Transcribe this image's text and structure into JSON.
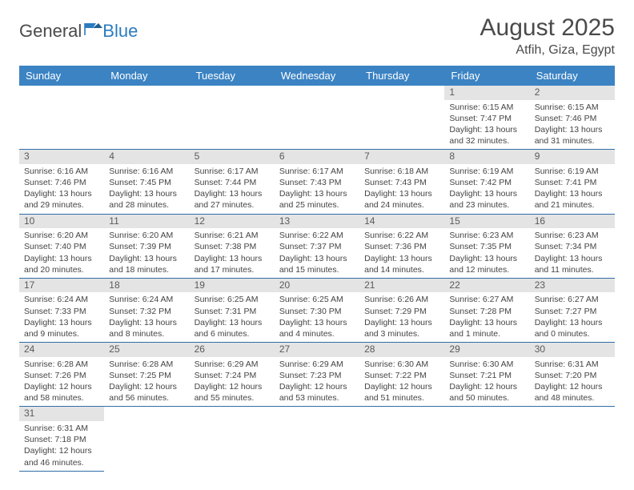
{
  "brand": {
    "name_a": "General",
    "name_b": "Blue"
  },
  "title": {
    "month": "August 2025",
    "location": "Atfih, Giza, Egypt"
  },
  "colors": {
    "header_bg": "#3b83c3",
    "header_text": "#ffffff",
    "daynum_bg": "#e4e4e4",
    "cell_border": "#2f6ea8",
    "text": "#444444",
    "brand_gray": "#4a4a4a",
    "brand_blue": "#2b7bbf"
  },
  "weekdays": [
    "Sunday",
    "Monday",
    "Tuesday",
    "Wednesday",
    "Thursday",
    "Friday",
    "Saturday"
  ],
  "grid": {
    "first_weekday_index": 5,
    "days_in_month": 31,
    "rows": 6,
    "cols": 7
  },
  "days": [
    {
      "n": 1,
      "sunrise": "6:15 AM",
      "sunset": "7:47 PM",
      "daylight": "13 hours and 32 minutes."
    },
    {
      "n": 2,
      "sunrise": "6:15 AM",
      "sunset": "7:46 PM",
      "daylight": "13 hours and 31 minutes."
    },
    {
      "n": 3,
      "sunrise": "6:16 AM",
      "sunset": "7:46 PM",
      "daylight": "13 hours and 29 minutes."
    },
    {
      "n": 4,
      "sunrise": "6:16 AM",
      "sunset": "7:45 PM",
      "daylight": "13 hours and 28 minutes."
    },
    {
      "n": 5,
      "sunrise": "6:17 AM",
      "sunset": "7:44 PM",
      "daylight": "13 hours and 27 minutes."
    },
    {
      "n": 6,
      "sunrise": "6:17 AM",
      "sunset": "7:43 PM",
      "daylight": "13 hours and 25 minutes."
    },
    {
      "n": 7,
      "sunrise": "6:18 AM",
      "sunset": "7:43 PM",
      "daylight": "13 hours and 24 minutes."
    },
    {
      "n": 8,
      "sunrise": "6:19 AM",
      "sunset": "7:42 PM",
      "daylight": "13 hours and 23 minutes."
    },
    {
      "n": 9,
      "sunrise": "6:19 AM",
      "sunset": "7:41 PM",
      "daylight": "13 hours and 21 minutes."
    },
    {
      "n": 10,
      "sunrise": "6:20 AM",
      "sunset": "7:40 PM",
      "daylight": "13 hours and 20 minutes."
    },
    {
      "n": 11,
      "sunrise": "6:20 AM",
      "sunset": "7:39 PM",
      "daylight": "13 hours and 18 minutes."
    },
    {
      "n": 12,
      "sunrise": "6:21 AM",
      "sunset": "7:38 PM",
      "daylight": "13 hours and 17 minutes."
    },
    {
      "n": 13,
      "sunrise": "6:22 AM",
      "sunset": "7:37 PM",
      "daylight": "13 hours and 15 minutes."
    },
    {
      "n": 14,
      "sunrise": "6:22 AM",
      "sunset": "7:36 PM",
      "daylight": "13 hours and 14 minutes."
    },
    {
      "n": 15,
      "sunrise": "6:23 AM",
      "sunset": "7:35 PM",
      "daylight": "13 hours and 12 minutes."
    },
    {
      "n": 16,
      "sunrise": "6:23 AM",
      "sunset": "7:34 PM",
      "daylight": "13 hours and 11 minutes."
    },
    {
      "n": 17,
      "sunrise": "6:24 AM",
      "sunset": "7:33 PM",
      "daylight": "13 hours and 9 minutes."
    },
    {
      "n": 18,
      "sunrise": "6:24 AM",
      "sunset": "7:32 PM",
      "daylight": "13 hours and 8 minutes."
    },
    {
      "n": 19,
      "sunrise": "6:25 AM",
      "sunset": "7:31 PM",
      "daylight": "13 hours and 6 minutes."
    },
    {
      "n": 20,
      "sunrise": "6:25 AM",
      "sunset": "7:30 PM",
      "daylight": "13 hours and 4 minutes."
    },
    {
      "n": 21,
      "sunrise": "6:26 AM",
      "sunset": "7:29 PM",
      "daylight": "13 hours and 3 minutes."
    },
    {
      "n": 22,
      "sunrise": "6:27 AM",
      "sunset": "7:28 PM",
      "daylight": "13 hours and 1 minute."
    },
    {
      "n": 23,
      "sunrise": "6:27 AM",
      "sunset": "7:27 PM",
      "daylight": "13 hours and 0 minutes."
    },
    {
      "n": 24,
      "sunrise": "6:28 AM",
      "sunset": "7:26 PM",
      "daylight": "12 hours and 58 minutes."
    },
    {
      "n": 25,
      "sunrise": "6:28 AM",
      "sunset": "7:25 PM",
      "daylight": "12 hours and 56 minutes."
    },
    {
      "n": 26,
      "sunrise": "6:29 AM",
      "sunset": "7:24 PM",
      "daylight": "12 hours and 55 minutes."
    },
    {
      "n": 27,
      "sunrise": "6:29 AM",
      "sunset": "7:23 PM",
      "daylight": "12 hours and 53 minutes."
    },
    {
      "n": 28,
      "sunrise": "6:30 AM",
      "sunset": "7:22 PM",
      "daylight": "12 hours and 51 minutes."
    },
    {
      "n": 29,
      "sunrise": "6:30 AM",
      "sunset": "7:21 PM",
      "daylight": "12 hours and 50 minutes."
    },
    {
      "n": 30,
      "sunrise": "6:31 AM",
      "sunset": "7:20 PM",
      "daylight": "12 hours and 48 minutes."
    },
    {
      "n": 31,
      "sunrise": "6:31 AM",
      "sunset": "7:18 PM",
      "daylight": "12 hours and 46 minutes."
    }
  ],
  "labels": {
    "sunrise": "Sunrise:",
    "sunset": "Sunset:",
    "daylight": "Daylight:"
  }
}
